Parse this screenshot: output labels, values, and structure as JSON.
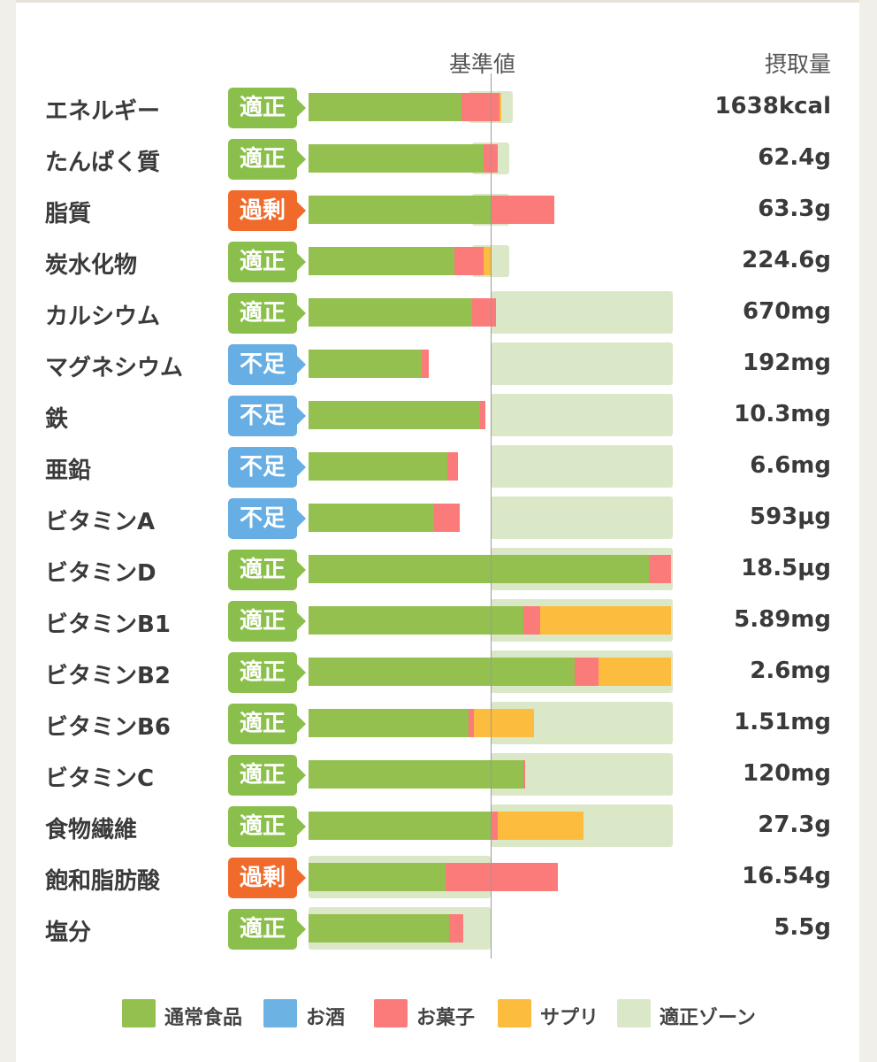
{
  "header": {
    "reference_label": "基準値",
    "intake_label": "摂取量"
  },
  "colors": {
    "food": "#93c04e",
    "alcohol": "#6cb3e3",
    "snack": "#fb7b7b",
    "supplement": "#fcbc3e",
    "zone": "#dbe8c8",
    "status_ok": "#8bbf4c",
    "status_over": "#f06a2c",
    "status_under": "#66aee3"
  },
  "legend": [
    {
      "key": "food",
      "label": "通常食品"
    },
    {
      "key": "alcohol",
      "label": "お酒"
    },
    {
      "key": "snack",
      "label": "お菓子"
    },
    {
      "key": "supplement",
      "label": "サプリ"
    },
    {
      "key": "zone",
      "label": "適正ゾーン"
    }
  ],
  "chart_data": {
    "type": "bar",
    "orientation": "horizontal",
    "stacked": true,
    "unit": "% of reference value",
    "reference_value": 100,
    "xlim": [
      0,
      200
    ],
    "categories": [
      "エネルギー",
      "たんぱく質",
      "脂質",
      "炭水化物",
      "カルシウム",
      "マグネシウム",
      "鉄",
      "亜鉛",
      "ビタミンA",
      "ビタミンD",
      "ビタミンB1",
      "ビタミンB2",
      "ビタミンB6",
      "ビタミンC",
      "食物繊維",
      "飽和脂肪酸",
      "塩分"
    ],
    "status": [
      "適正",
      "適正",
      "過剰",
      "適正",
      "適正",
      "不足",
      "不足",
      "不足",
      "不足",
      "適正",
      "適正",
      "適正",
      "適正",
      "適正",
      "適正",
      "過剰",
      "適正"
    ],
    "intake": [
      "1638kcal",
      "62.4g",
      "63.3g",
      "224.6g",
      "670mg",
      "192mg",
      "10.3mg",
      "6.6mg",
      "593μg",
      "18.5μg",
      "5.89mg",
      "2.6mg",
      "1.51mg",
      "120mg",
      "27.3g",
      "16.54g",
      "5.5g"
    ],
    "series": [
      {
        "name": "通常食品",
        "key": "food",
        "values": [
          84,
          96,
          100,
          80,
          90,
          62,
          94,
          76,
          69,
          187,
          118,
          146,
          88,
          118,
          100,
          75,
          77
        ]
      },
      {
        "name": "お酒",
        "key": "alcohol",
        "values": [
          0,
          0,
          0,
          0,
          0,
          0,
          0,
          0,
          0,
          0,
          0,
          0,
          0,
          0,
          0,
          0,
          0
        ]
      },
      {
        "name": "お菓子",
        "key": "snack",
        "values": [
          21,
          8,
          35,
          16,
          13,
          4,
          3,
          6,
          14,
          12,
          9,
          13,
          3,
          1,
          4,
          62,
          8
        ]
      },
      {
        "name": "サプリ",
        "key": "supplement",
        "values": [
          1,
          0,
          0,
          4,
          0,
          0,
          0,
          0,
          0,
          0,
          72,
          40,
          33,
          0,
          47,
          0,
          0
        ]
      }
    ],
    "zone": [
      [
        88,
        112
      ],
      [
        90,
        110
      ],
      [
        90,
        110
      ],
      [
        90,
        110
      ],
      [
        100,
        200
      ],
      [
        100,
        200
      ],
      [
        100,
        200
      ],
      [
        100,
        200
      ],
      [
        100,
        200
      ],
      [
        100,
        200
      ],
      [
        100,
        200
      ],
      [
        100,
        200
      ],
      [
        100,
        200
      ],
      [
        100,
        200
      ],
      [
        100,
        200
      ],
      [
        0,
        100
      ],
      [
        0,
        100
      ]
    ]
  }
}
